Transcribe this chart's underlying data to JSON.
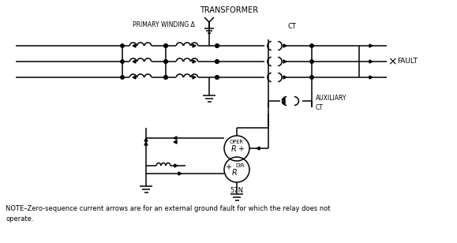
{
  "title": "TRANSFORMER",
  "label_primary": "PRIMARY WINDING Δ",
  "label_ct": "CT",
  "label_fault": "FAULT",
  "label_aux_ct": "AUXILIARY\nCT",
  "label_oper": "OPER",
  "label_dir": "DIR",
  "label_relay": "57N",
  "label_r": "R",
  "label_plus": "+",
  "note": "NOTE–Zero-sequence current arrows are for an external ground fault for which the relay does not\noperate.",
  "bg_color": "#ffffff",
  "line_color": "#000000",
  "lw": 1.1,
  "figsize": [
    5.79,
    3.08
  ],
  "dpi": 100
}
